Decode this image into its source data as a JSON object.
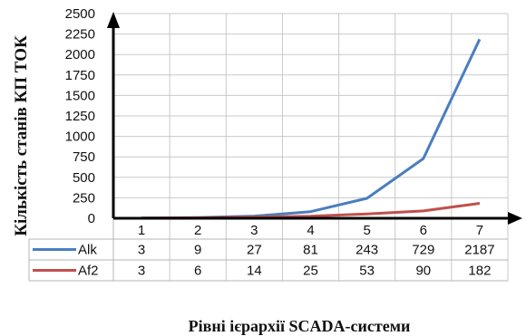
{
  "chart_data": {
    "type": "line",
    "ylabel": "Кількість станів КП  ТОК",
    "xlabel": "Рівні ієрархії SCADA-системи",
    "categories": [
      "1",
      "2",
      "3",
      "4",
      "5",
      "6",
      "7"
    ],
    "ylim": [
      0,
      2500
    ],
    "yticks": [
      0,
      250,
      500,
      750,
      1000,
      1250,
      1500,
      1750,
      2000,
      2250,
      2500
    ],
    "grid": true,
    "legend": "data-table",
    "series": [
      {
        "name": "Alk",
        "color": "#4a7ebf",
        "values": [
          3,
          9,
          27,
          81,
          243,
          729,
          2187
        ]
      },
      {
        "name": "Af2",
        "color": "#c0504d",
        "values": [
          3,
          6,
          14,
          25,
          53,
          90,
          182
        ]
      }
    ]
  }
}
